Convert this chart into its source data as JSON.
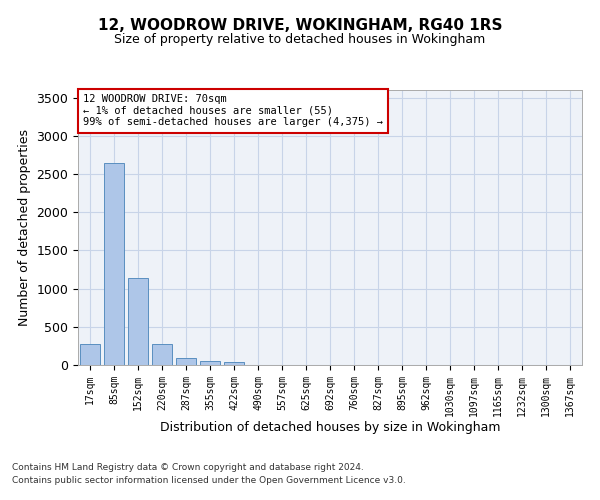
{
  "title": "12, WOODROW DRIVE, WOKINGHAM, RG40 1RS",
  "subtitle": "Size of property relative to detached houses in Wokingham",
  "xlabel": "Distribution of detached houses by size in Wokingham",
  "ylabel": "Number of detached properties",
  "bin_labels": [
    "17sqm",
    "85sqm",
    "152sqm",
    "220sqm",
    "287sqm",
    "355sqm",
    "422sqm",
    "490sqm",
    "557sqm",
    "625sqm",
    "692sqm",
    "760sqm",
    "827sqm",
    "895sqm",
    "962sqm",
    "1030sqm",
    "1097sqm",
    "1165sqm",
    "1232sqm",
    "1300sqm",
    "1367sqm"
  ],
  "bar_values": [
    270,
    2640,
    1140,
    280,
    90,
    55,
    40,
    5,
    2,
    1,
    1,
    0,
    0,
    0,
    0,
    0,
    0,
    0,
    0,
    0,
    0
  ],
  "bar_color": "#aec6e8",
  "bar_edge_color": "#5a8fc0",
  "grid_color": "#c8d4e8",
  "background_color": "#eef2f8",
  "annotation_line1": "12 WOODROW DRIVE: 70sqm",
  "annotation_line2": "← 1% of detached houses are smaller (55)",
  "annotation_line3": "99% of semi-detached houses are larger (4,375) →",
  "annotation_box_color": "#ffffff",
  "annotation_box_edge": "#cc0000",
  "ylim": [
    0,
    3600
  ],
  "yticks": [
    0,
    500,
    1000,
    1500,
    2000,
    2500,
    3000,
    3500
  ],
  "footnote1": "Contains HM Land Registry data © Crown copyright and database right 2024.",
  "footnote2": "Contains public sector information licensed under the Open Government Licence v3.0."
}
